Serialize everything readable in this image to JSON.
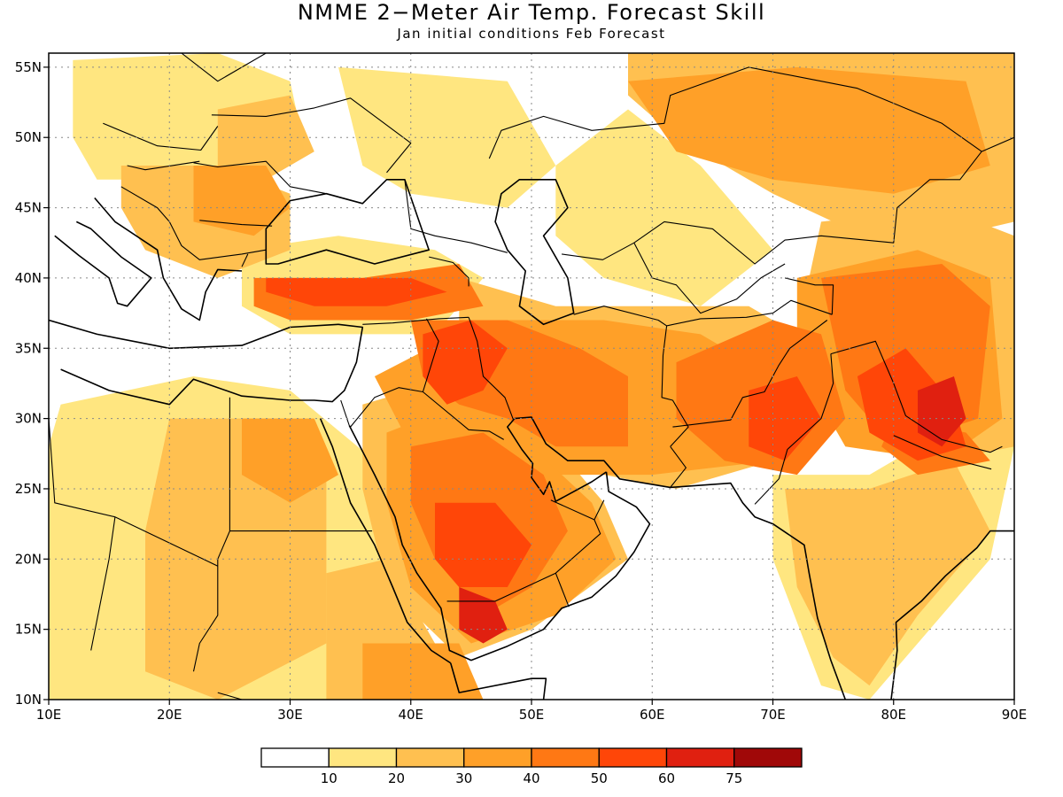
{
  "title": "NMME 2−Meter Air Temp. Forecast Skill",
  "subtitle": "Jan initial conditions   Feb Forecast",
  "map": {
    "lon_range": [
      10,
      90
    ],
    "lat_range": [
      10,
      56
    ],
    "lon_ticks": [
      "10E",
      "20E",
      "30E",
      "40E",
      "50E",
      "60E",
      "70E",
      "80E",
      "90E"
    ],
    "lat_ticks": [
      "10N",
      "15N",
      "20N",
      "25N",
      "30N",
      "35N",
      "40N",
      "45N",
      "50N",
      "55N"
    ],
    "gridlines": "dotted"
  },
  "legend": {
    "colors": [
      "#ffffff",
      "#ffe680",
      "#ffc050",
      "#ffa028",
      "#ff7814",
      "#ff4608",
      "#e02010",
      "#a00808"
    ],
    "labels": [
      "10",
      "20",
      "30",
      "40",
      "50",
      "60",
      "75"
    ]
  },
  "chart_data": {
    "type": "heatmap",
    "title": "NMME 2−Meter Air Temp. Forecast Skill",
    "subtitle": "Jan initial conditions   Feb Forecast",
    "xlabel": "",
    "ylabel": "",
    "xlim": [
      10,
      90
    ],
    "ylim": [
      10,
      56
    ],
    "levels": [
      10,
      20,
      30,
      40,
      50,
      60,
      75
    ],
    "regions": [
      {
        "lon": [
          12,
          22
        ],
        "lat": [
          44,
          55
        ],
        "value": 15
      },
      {
        "lon": [
          22,
          32
        ],
        "lat": [
          42,
          50
        ],
        "value": 30
      },
      {
        "lon": [
          27,
          45
        ],
        "lat": [
          37,
          41
        ],
        "value": 55
      },
      {
        "lon": [
          36,
          56
        ],
        "lat": [
          26,
          38
        ],
        "value": 50
      },
      {
        "lon": [
          44,
          50
        ],
        "lat": [
          15,
          20
        ],
        "value": 65
      },
      {
        "lon": [
          56,
          75
        ],
        "lat": [
          26,
          38
        ],
        "value": 45
      },
      {
        "lon": [
          75,
          88
        ],
        "lat": [
          26,
          40
        ],
        "value": 55
      },
      {
        "lon": [
          60,
          90
        ],
        "lat": [
          44,
          56
        ],
        "value": 30
      },
      {
        "lon": [
          20,
          33
        ],
        "lat": [
          12,
          32
        ],
        "value": 25
      },
      {
        "lon": [
          73,
          85
        ],
        "lat": [
          10,
          24
        ],
        "value": 25
      }
    ]
  }
}
